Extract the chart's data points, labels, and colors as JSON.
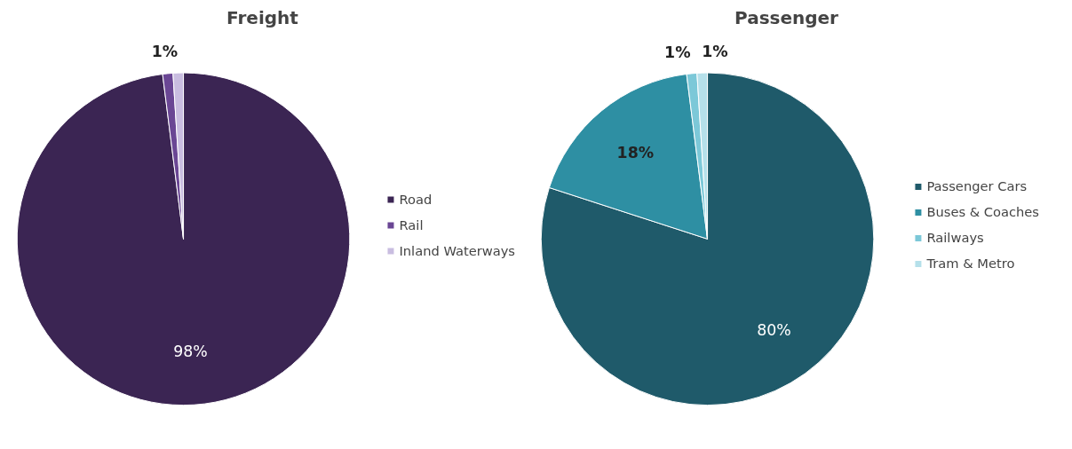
{
  "chart_data": [
    {
      "type": "pie",
      "title": "Freight",
      "categories": [
        "Road",
        "Rail",
        "Inland Waterways"
      ],
      "values": [
        98,
        1,
        1
      ],
      "colors": [
        "#3b2553",
        "#6a4694",
        "#c9bde0"
      ],
      "value_labels": [
        "98%",
        null,
        "1%"
      ],
      "legend": "right"
    },
    {
      "type": "pie",
      "title": "Passenger",
      "categories": [
        "Passenger Cars",
        "Buses & Coaches",
        "Railways",
        "Tram & Metro"
      ],
      "values": [
        80,
        18,
        1,
        1
      ],
      "colors": [
        "#1f5a6a",
        "#2e8fa3",
        "#7cc8d8",
        "#b5e0ea"
      ],
      "value_labels": [
        "80%",
        "18%",
        "1%",
        "1%"
      ],
      "legend": "right"
    }
  ]
}
